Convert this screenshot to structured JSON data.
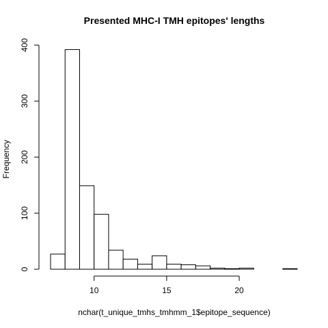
{
  "chart_data": {
    "type": "bar",
    "subtype": "histogram",
    "title": "Presented MHC-I TMH epitopes' lengths",
    "xlabel": "nchar(t_unique_tmhs_tmhmm_1$epitope_sequence)",
    "ylabel": "Frequency",
    "bin_width": 1,
    "bin_edges": [
      7,
      8,
      9,
      10,
      11,
      12,
      13,
      14,
      15,
      16,
      17,
      18,
      19,
      20,
      21,
      22,
      23,
      24
    ],
    "values": [
      27,
      392,
      149,
      98,
      34,
      18,
      9,
      24,
      9,
      8,
      6,
      2,
      1,
      2,
      0,
      0,
      1
    ],
    "xlim": [
      7,
      24
    ],
    "ylim": [
      0,
      400
    ],
    "x_ticks": [
      10,
      15,
      20
    ],
    "x_tick_labels": [
      "10",
      "15",
      "20"
    ],
    "y_ticks": [
      0,
      100,
      200,
      300,
      400
    ],
    "y_tick_labels": [
      "0",
      "100",
      "200",
      "300",
      "400"
    ],
    "fill_color": "#ffffff",
    "stroke_color": "#000000",
    "grid": false,
    "legend": "none"
  }
}
